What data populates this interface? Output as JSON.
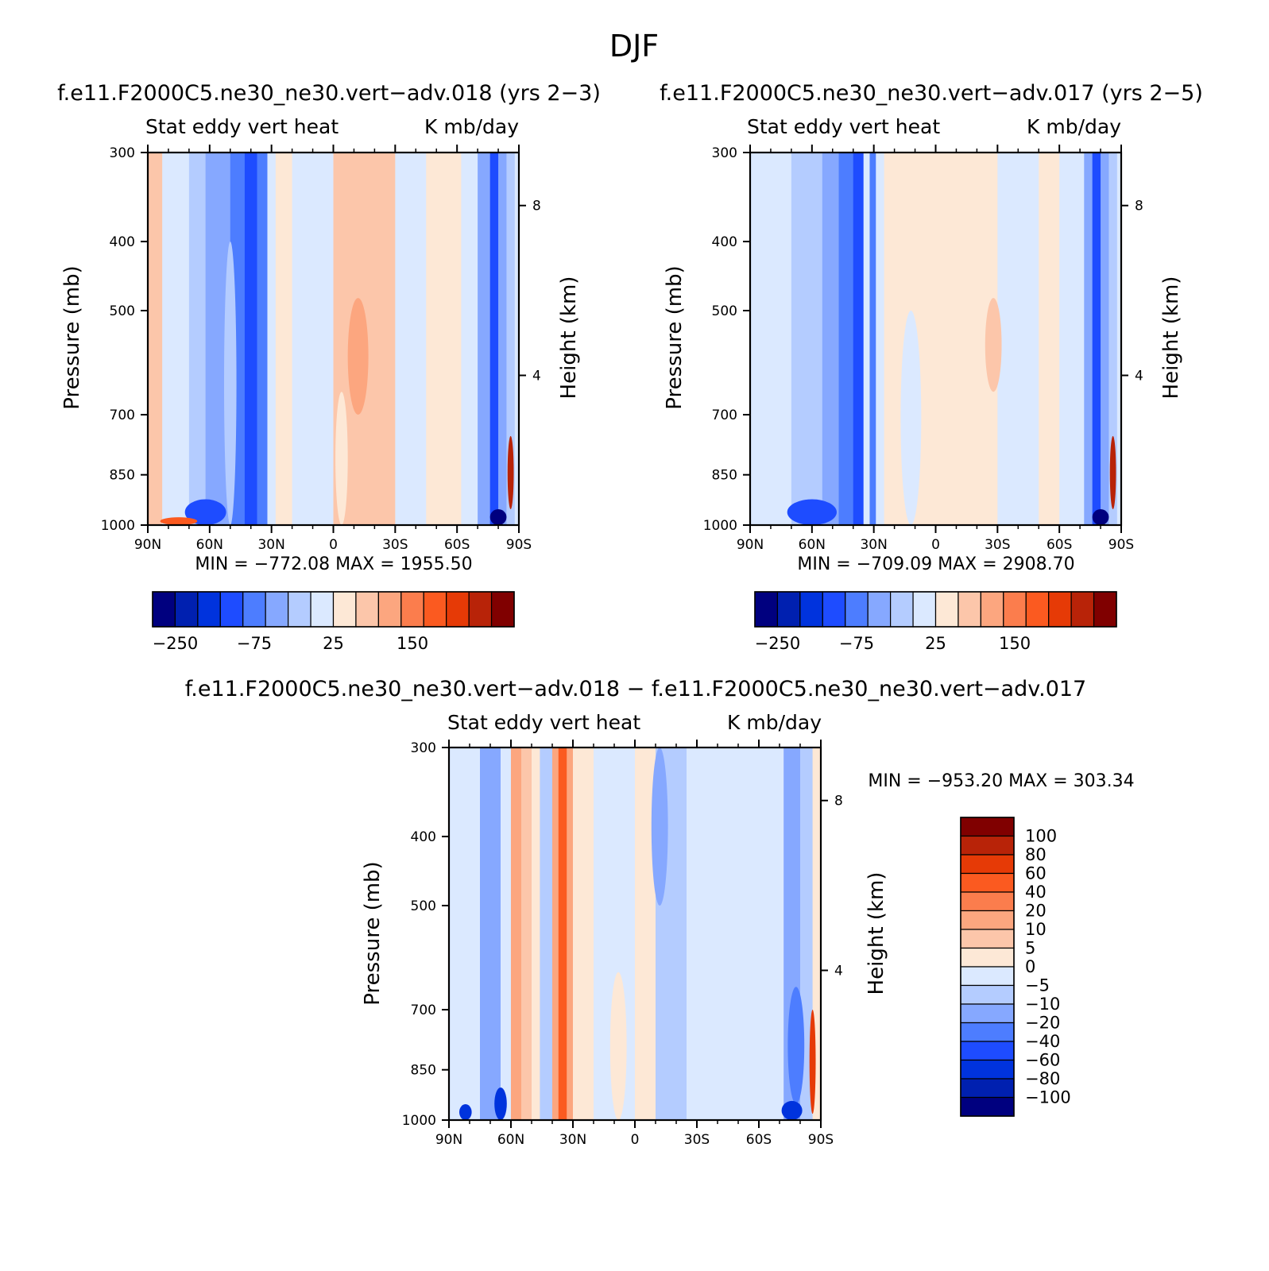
{
  "figure_title": "DJF",
  "chart_data": [
    {
      "type": "heatmap",
      "title": "f.e11.F2000C5.ne30_ne30.vert−adv.018 (yrs 2−3)",
      "top_left_label": "Stat eddy vert heat",
      "top_right_label": "K mb/day",
      "xlabel": "",
      "ylabel": "Pressure (mb)",
      "right_ylabel": "Height (km)",
      "x_ticks": [
        "90N",
        "60N",
        "30N",
        "0",
        "30S",
        "60S",
        "90S"
      ],
      "y_ticks": [
        "300",
        "400",
        "500",
        "700",
        "850",
        "1000"
      ],
      "right_y_ticks": [
        "8",
        "4"
      ],
      "xlim": [
        90,
        -90
      ],
      "ylim": [
        1000,
        300
      ],
      "y_scale": "log",
      "min_max_text": "MIN = −772.08   MAX = 1955.50",
      "colorbar": {
        "orientation": "horizontal",
        "labels": [
          "−250",
          "−75",
          "25",
          "150"
        ],
        "colors": [
          "#00007f",
          "#0020b0",
          "#0033dd",
          "#1e4cff",
          "#4d7dff",
          "#86a8ff",
          "#b4ccff",
          "#dbe9ff",
          "#fde8d6",
          "#fcc6aa",
          "#fca67f",
          "#fb7d4d",
          "#fb5a20",
          "#e63a06",
          "#b82308",
          "#800000"
        ]
      },
      "field_bands": [
        {
          "lat_from": 90,
          "lat_to": 83,
          "class": 9
        },
        {
          "lat_from": 83,
          "lat_to": 70,
          "class": 7
        },
        {
          "lat_from": 70,
          "lat_to": 62,
          "class": 6
        },
        {
          "lat_from": 62,
          "lat_to": 50,
          "class": 5
        },
        {
          "lat_from": 50,
          "lat_to": 43,
          "class": 4
        },
        {
          "lat_from": 43,
          "lat_to": 37,
          "class": 3
        },
        {
          "lat_from": 37,
          "lat_to": 32,
          "class": 4
        },
        {
          "lat_from": 32,
          "lat_to": 28,
          "class": 7
        },
        {
          "lat_from": 28,
          "lat_to": 20,
          "class": 8
        },
        {
          "lat_from": 20,
          "lat_to": 0,
          "class": 7
        },
        {
          "lat_from": 0,
          "lat_to": -30,
          "class": 9
        },
        {
          "lat_from": -30,
          "lat_to": -45,
          "class": 7
        },
        {
          "lat_from": -45,
          "lat_to": -62,
          "class": 8
        },
        {
          "lat_from": -62,
          "lat_to": -70,
          "class": 7
        },
        {
          "lat_from": -70,
          "lat_to": -76,
          "class": 5
        },
        {
          "lat_from": -76,
          "lat_to": -80,
          "class": 3
        },
        {
          "lat_from": -80,
          "lat_to": -84,
          "class": 5
        },
        {
          "lat_from": -84,
          "lat_to": -88,
          "class": 6
        },
        {
          "lat_from": -88,
          "lat_to": -90,
          "class": 7
        }
      ],
      "field_blobs": [
        {
          "lat": 50,
          "p_top": 400,
          "p_bot": 1000,
          "width": 6,
          "class": 6
        },
        {
          "lat": -12,
          "p_top": 480,
          "p_bot": 700,
          "width": 10,
          "class": 10
        },
        {
          "lat": -4,
          "p_top": 650,
          "p_bot": 1000,
          "width": 6,
          "class": 8
        },
        {
          "lat": 62,
          "p_top": 920,
          "p_bot": 1000,
          "width": 20,
          "class": 3
        },
        {
          "lat": 75,
          "p_top": 975,
          "p_bot": 1000,
          "width": 18,
          "class": 12
        },
        {
          "lat": -80,
          "p_top": 950,
          "p_bot": 1000,
          "width": 8,
          "class": 0
        },
        {
          "lat": -86,
          "p_top": 750,
          "p_bot": 950,
          "width": 3,
          "class": 14
        }
      ]
    },
    {
      "type": "heatmap",
      "title": "f.e11.F2000C5.ne30_ne30.vert−adv.017 (yrs 2−5)",
      "top_left_label": "Stat eddy vert heat",
      "top_right_label": "K mb/day",
      "xlabel": "",
      "ylabel": "Pressure (mb)",
      "right_ylabel": "Height (km)",
      "x_ticks": [
        "90N",
        "60N",
        "30N",
        "0",
        "30S",
        "60S",
        "90S"
      ],
      "y_ticks": [
        "300",
        "400",
        "500",
        "700",
        "850",
        "1000"
      ],
      "right_y_ticks": [
        "8",
        "4"
      ],
      "xlim": [
        90,
        -90
      ],
      "ylim": [
        1000,
        300
      ],
      "y_scale": "log",
      "min_max_text": "MIN = −709.09   MAX = 2908.70",
      "colorbar": {
        "orientation": "horizontal",
        "labels": [
          "−250",
          "−75",
          "25",
          "150"
        ],
        "colors": [
          "#00007f",
          "#0020b0",
          "#0033dd",
          "#1e4cff",
          "#4d7dff",
          "#86a8ff",
          "#b4ccff",
          "#dbe9ff",
          "#fde8d6",
          "#fcc6aa",
          "#fca67f",
          "#fb7d4d",
          "#fb5a20",
          "#e63a06",
          "#b82308",
          "#800000"
        ]
      },
      "field_bands": [
        {
          "lat_from": 90,
          "lat_to": 70,
          "class": 7
        },
        {
          "lat_from": 70,
          "lat_to": 55,
          "class": 6
        },
        {
          "lat_from": 55,
          "lat_to": 47,
          "class": 5
        },
        {
          "lat_from": 47,
          "lat_to": 40,
          "class": 4
        },
        {
          "lat_from": 40,
          "lat_to": 35,
          "class": 3
        },
        {
          "lat_from": 35,
          "lat_to": 32,
          "class": 7
        },
        {
          "lat_from": 32,
          "lat_to": 29,
          "class": 4
        },
        {
          "lat_from": 29,
          "lat_to": 25,
          "class": 7
        },
        {
          "lat_from": 25,
          "lat_to": 10,
          "class": 8
        },
        {
          "lat_from": 10,
          "lat_to": -30,
          "class": 8
        },
        {
          "lat_from": -30,
          "lat_to": -50,
          "class": 7
        },
        {
          "lat_from": -50,
          "lat_to": -60,
          "class": 8
        },
        {
          "lat_from": -60,
          "lat_to": -72,
          "class": 7
        },
        {
          "lat_from": -72,
          "lat_to": -76,
          "class": 5
        },
        {
          "lat_from": -76,
          "lat_to": -80,
          "class": 3
        },
        {
          "lat_from": -80,
          "lat_to": -84,
          "class": 5
        },
        {
          "lat_from": -84,
          "lat_to": -88,
          "class": 6
        },
        {
          "lat_from": -88,
          "lat_to": -90,
          "class": 7
        }
      ],
      "field_blobs": [
        {
          "lat": -28,
          "p_top": 480,
          "p_bot": 650,
          "width": 8,
          "class": 9
        },
        {
          "lat": 12,
          "p_top": 500,
          "p_bot": 1000,
          "width": 10,
          "class": 7
        },
        {
          "lat": 60,
          "p_top": 920,
          "p_bot": 1000,
          "width": 24,
          "class": 3
        },
        {
          "lat": -80,
          "p_top": 950,
          "p_bot": 1000,
          "width": 8,
          "class": 0
        },
        {
          "lat": -86,
          "p_top": 750,
          "p_bot": 950,
          "width": 3,
          "class": 14
        }
      ]
    },
    {
      "type": "heatmap",
      "title": "f.e11.F2000C5.ne30_ne30.vert−adv.018 − f.e11.F2000C5.ne30_ne30.vert−adv.017",
      "top_left_label": "Stat eddy vert heat",
      "top_right_label": "K mb/day",
      "xlabel": "",
      "ylabel": "Pressure (mb)",
      "right_ylabel": "Height (km)",
      "x_ticks": [
        "90N",
        "60N",
        "30N",
        "0",
        "30S",
        "60S",
        "90S"
      ],
      "y_ticks": [
        "300",
        "400",
        "500",
        "700",
        "850",
        "1000"
      ],
      "right_y_ticks": [
        "8",
        "4"
      ],
      "xlim": [
        90,
        -90
      ],
      "ylim": [
        1000,
        300
      ],
      "y_scale": "log",
      "min_max_text": "MIN = −953.20   MAX = 303.34",
      "colorbar": {
        "orientation": "vertical",
        "labels": [
          "100",
          "80",
          "60",
          "40",
          "20",
          "10",
          "5",
          "0",
          "−5",
          "−10",
          "−20",
          "−40",
          "−60",
          "−80",
          "−100"
        ],
        "colors": [
          "#800000",
          "#b82308",
          "#e63a06",
          "#fb5a20",
          "#fb7d4d",
          "#fca67f",
          "#fcc6aa",
          "#fde8d6",
          "#dbe9ff",
          "#b4ccff",
          "#86a8ff",
          "#4d7dff",
          "#1e4cff",
          "#0033dd",
          "#0020b0",
          "#00007f"
        ]
      },
      "field_bands": [
        {
          "lat_from": 90,
          "lat_to": 75,
          "class": 8
        },
        {
          "lat_from": 75,
          "lat_to": 65,
          "class": 10
        },
        {
          "lat_from": 65,
          "lat_to": 60,
          "class": 8
        },
        {
          "lat_from": 60,
          "lat_to": 55,
          "class": 5
        },
        {
          "lat_from": 55,
          "lat_to": 50,
          "class": 6
        },
        {
          "lat_from": 50,
          "lat_to": 46,
          "class": 7
        },
        {
          "lat_from": 46,
          "lat_to": 40,
          "class": 9
        },
        {
          "lat_from": 40,
          "lat_to": 37,
          "class": 5
        },
        {
          "lat_from": 37,
          "lat_to": 33,
          "class": 3
        },
        {
          "lat_from": 33,
          "lat_to": 30,
          "class": 5
        },
        {
          "lat_from": 30,
          "lat_to": 20,
          "class": 7
        },
        {
          "lat_from": 20,
          "lat_to": 0,
          "class": 8
        },
        {
          "lat_from": 0,
          "lat_to": -10,
          "class": 7
        },
        {
          "lat_from": -10,
          "lat_to": -25,
          "class": 9
        },
        {
          "lat_from": -25,
          "lat_to": -38,
          "class": 8
        },
        {
          "lat_from": -38,
          "lat_to": -62,
          "class": 8
        },
        {
          "lat_from": -62,
          "lat_to": -72,
          "class": 8
        },
        {
          "lat_from": -72,
          "lat_to": -80,
          "class": 10
        },
        {
          "lat_from": -80,
          "lat_to": -86,
          "class": 9
        },
        {
          "lat_from": -86,
          "lat_to": -90,
          "class": 7
        }
      ],
      "field_blobs": [
        {
          "lat": -12,
          "p_top": 300,
          "p_bot": 500,
          "width": 8,
          "class": 10
        },
        {
          "lat": -78,
          "p_top": 650,
          "p_bot": 950,
          "width": 8,
          "class": 11
        },
        {
          "lat": -76,
          "p_top": 940,
          "p_bot": 1000,
          "width": 10,
          "class": 13
        },
        {
          "lat": -86,
          "p_top": 700,
          "p_bot": 980,
          "width": 3,
          "class": 2
        },
        {
          "lat": 65,
          "p_top": 900,
          "p_bot": 1000,
          "width": 6,
          "class": 13
        },
        {
          "lat": 82,
          "p_top": 950,
          "p_bot": 1000,
          "width": 6,
          "class": 13
        },
        {
          "lat": 8,
          "p_top": 620,
          "p_bot": 1000,
          "width": 8,
          "class": 7
        }
      ]
    }
  ]
}
